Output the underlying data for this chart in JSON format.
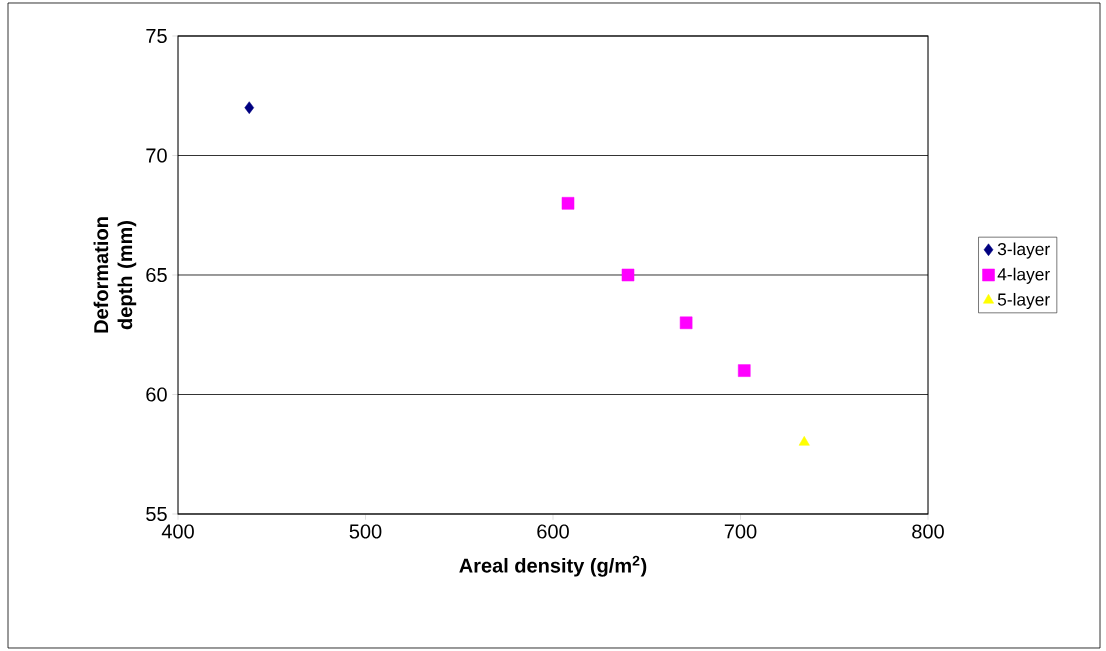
{
  "chart_data": {
    "type": "scatter",
    "xlabel": "Areal density (g/m$^{2}$)",
    "ylabel": "Deformation depth (mm)",
    "xlim": [
      400,
      800
    ],
    "xticks": [
      400,
      500,
      600,
      700,
      800
    ],
    "ylim": [
      55,
      75
    ],
    "yticks": [
      55,
      60,
      65,
      70,
      75
    ],
    "grid": "y",
    "legend": "right",
    "series": [
      {
        "name": "3-layer",
        "color": "#000080",
        "marker": "diamond",
        "x": [
          438
        ],
        "values": [
          72
        ]
      },
      {
        "name": "4-layer",
        "color": "#ff00ff",
        "marker": "square",
        "x": [
          608,
          640,
          671,
          702
        ],
        "values": [
          68,
          65,
          63,
          61
        ]
      },
      {
        "name": "5-layer",
        "color": "#ffff00",
        "marker": "triangle",
        "x": [
          734
        ],
        "values": [
          58
        ]
      }
    ]
  }
}
